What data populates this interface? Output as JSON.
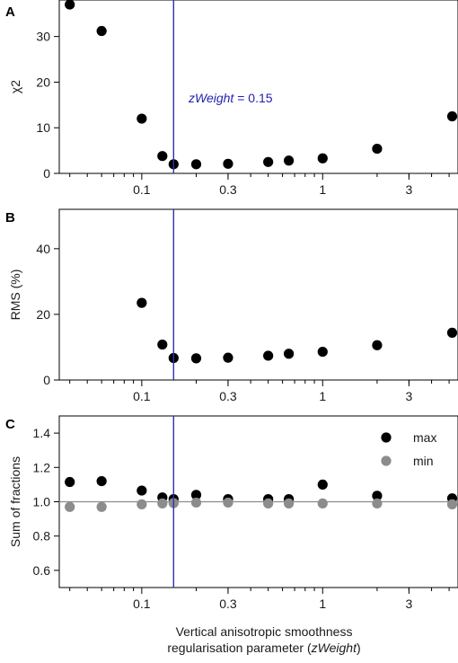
{
  "colors": {
    "marker_max": "#000000",
    "marker_min": "#8c8c8c",
    "vline": "#2f2fb0",
    "refline": "#8c8c8c",
    "annotation": "#1f1fb4"
  },
  "xaxis": {
    "scale": "log",
    "range": [
      0.035,
      5.6
    ],
    "ticks": [
      {
        "value": 0.1,
        "label": "0.1"
      },
      {
        "value": 0.3,
        "label": "0.3"
      },
      {
        "value": 1,
        "label": "1"
      },
      {
        "value": 3,
        "label": "3"
      }
    ],
    "label_line1": "Vertical anisotropic smoothness",
    "label_line2_prefix": "regularisation parameter (",
    "label_line2_italic": "zWeight",
    "label_line2_suffix": ")"
  },
  "chart_data": [
    {
      "panel": "A",
      "type": "scatter",
      "ylabel": "χ2",
      "ylim": [
        0,
        38
      ],
      "yticks": [
        0,
        10,
        20,
        30
      ],
      "vline_x": 0.15,
      "annotation": {
        "italic": "zWeight",
        "text": " = 0.15"
      },
      "series": [
        {
          "x": [
            0.04,
            0.06,
            0.1,
            0.13,
            0.15,
            0.2,
            0.3,
            0.5,
            0.65,
            1.0,
            2.0,
            5.2
          ],
          "y": [
            37,
            31.2,
            12,
            3.8,
            2.0,
            2.0,
            2.1,
            2.5,
            2.8,
            3.3,
            5.4,
            12.5
          ]
        }
      ]
    },
    {
      "panel": "B",
      "type": "scatter",
      "ylabel": "RMS (%)",
      "ylim": [
        0,
        52
      ],
      "yticks": [
        0,
        20,
        40
      ],
      "vline_x": 0.15,
      "series": [
        {
          "x": [
            0.1,
            0.13,
            0.15,
            0.2,
            0.3,
            0.5,
            0.65,
            1.0,
            2.0,
            5.2
          ],
          "y": [
            23.5,
            10.8,
            6.7,
            6.6,
            6.8,
            7.4,
            8.0,
            8.6,
            10.6,
            14.4
          ]
        }
      ]
    },
    {
      "panel": "C",
      "type": "scatter",
      "ylabel": "Sum of fractions",
      "ylim": [
        0.5,
        1.5
      ],
      "yticks": [
        0.6,
        0.8,
        1.0,
        1.2,
        1.4
      ],
      "ytick_labels": [
        "0.6",
        "0.8",
        "1.0",
        "1.2",
        "1.4"
      ],
      "vline_x": 0.15,
      "hline_y": 1.0,
      "legend": "top-right",
      "series": [
        {
          "name": "max",
          "x": [
            0.04,
            0.06,
            0.1,
            0.13,
            0.15,
            0.2,
            0.3,
            0.5,
            0.65,
            1.0,
            2.0,
            5.2
          ],
          "y": [
            1.115,
            1.12,
            1.065,
            1.025,
            1.015,
            1.04,
            1.015,
            1.015,
            1.015,
            1.1,
            1.035,
            1.02
          ]
        },
        {
          "name": "min",
          "x": [
            0.04,
            0.06,
            0.1,
            0.13,
            0.15,
            0.2,
            0.3,
            0.5,
            0.65,
            1.0,
            2.0,
            5.2
          ],
          "y": [
            0.97,
            0.97,
            0.985,
            0.99,
            0.992,
            0.995,
            0.995,
            0.99,
            0.99,
            0.99,
            0.99,
            0.985
          ]
        }
      ]
    }
  ]
}
